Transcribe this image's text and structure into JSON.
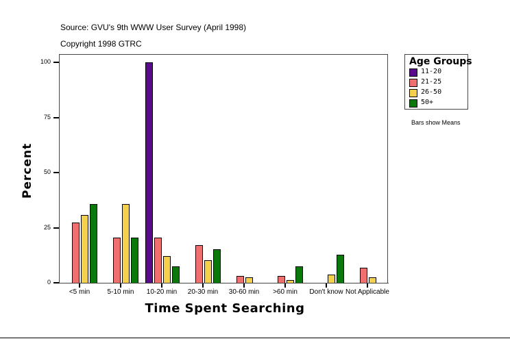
{
  "header": {
    "source": "Source: GVU's 9th WWW User Survey (April 1998)",
    "copyright": "Copyright 1998 GTRC"
  },
  "axes": {
    "ylabel": "Percent",
    "xlabel": "Time Spent Searching",
    "yticks": [
      "0",
      "25",
      "50",
      "75",
      "100"
    ]
  },
  "legend": {
    "title": "Age Groups",
    "items": [
      {
        "label": "11-20",
        "color": "#5a0a8c"
      },
      {
        "label": "21-25",
        "color": "#f07070"
      },
      {
        "label": "26-50",
        "color": "#f5d04a"
      },
      {
        "label": "50+",
        "color": "#0a780a"
      }
    ],
    "note": "Bars show Means"
  },
  "chart_data": {
    "type": "bar",
    "title": "",
    "subtitle": "Source: GVU's 9th WWW User Survey (April 1998) / Copyright 1998 GTRC",
    "xlabel": "Time Spent Searching",
    "ylabel": "Percent",
    "ylim": [
      0,
      100
    ],
    "yticks": [
      0,
      25,
      50,
      75,
      100
    ],
    "grid": false,
    "legend_position": "right",
    "legend_title": "Age Groups",
    "categories": [
      "<5 min",
      "5-10 min",
      "10-20 min",
      "20-30 min",
      "30-60 min",
      ">60 min",
      "Don't know",
      "Not Applicable"
    ],
    "series": [
      {
        "name": "11-20",
        "color": "#5a0a8c",
        "values": [
          0,
          0,
          100,
          0,
          0,
          0,
          0,
          0
        ]
      },
      {
        "name": "21-25",
        "color": "#f07070",
        "values": [
          27.3,
          20.5,
          20.5,
          17.1,
          3.1,
          3.1,
          0,
          6.8
        ]
      },
      {
        "name": "26-50",
        "color": "#f5d04a",
        "values": [
          30.7,
          35.7,
          12.1,
          10.2,
          2.5,
          1.2,
          3.7,
          2.5
        ]
      },
      {
        "name": "50+",
        "color": "#0a780a",
        "values": [
          35.7,
          20.5,
          7.5,
          15.2,
          0,
          7.5,
          12.7,
          0
        ]
      }
    ],
    "annotations": [
      "Bars show Means"
    ]
  }
}
